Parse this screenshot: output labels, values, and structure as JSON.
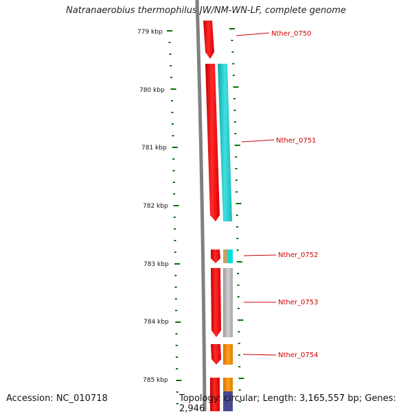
{
  "title": "Natranaerobius thermophilus JW/NM-WN-LF, complete genome",
  "footer": {
    "accession": "Accession: NC_010718",
    "topology": "Topology: circular; Length: 3,165,557 bp; Genes: 2,946"
  },
  "kbp_ticks": [
    {
      "label": "779 kbp",
      "pos_kbp": 779
    },
    {
      "label": "780 kbp",
      "pos_kbp": 780
    },
    {
      "label": "781 kbp",
      "pos_kbp": 781
    },
    {
      "label": "782 kbp",
      "pos_kbp": 782
    },
    {
      "label": "783 kbp",
      "pos_kbp": 783
    },
    {
      "label": "784 kbp",
      "pos_kbp": 784
    },
    {
      "label": "785 kbp",
      "pos_kbp": 785
    }
  ],
  "genes": [
    {
      "label": "Nther_0750",
      "color": "#ff0000",
      "cog_color": null
    },
    {
      "label": "Nther_0751",
      "color": "#ff0000",
      "cog_color": "#22cccc"
    },
    {
      "label": "Nther_0752",
      "color": "#ff0000",
      "cog_color": "#c8a060",
      "cog_color2": "#00e0e0"
    },
    {
      "label": "Nther_0753",
      "color": "#ff0000",
      "cog_color": "#b0b0b0"
    },
    {
      "label": "Nther_0754",
      "color": "#ff0000",
      "cog_color": "#f08800"
    }
  ],
  "colors": {
    "backbone": "#808080",
    "tick": "#007000",
    "gene": "#ff0000",
    "label": "#cc0000"
  }
}
